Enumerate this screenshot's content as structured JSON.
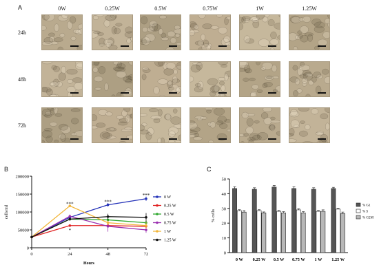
{
  "figure": {
    "panel_a": {
      "letter": "A",
      "columns": [
        "0W",
        "0.25W",
        "0.5W",
        "0.75W",
        "1W",
        "1.25W"
      ],
      "rows": [
        "24h",
        "48h",
        "72h"
      ]
    },
    "panel_b": {
      "letter": "B"
    },
    "panel_c": {
      "letter": "C"
    }
  },
  "chart_data": [
    {
      "type": "line",
      "panel": "B",
      "xlabel": "Hours",
      "ylabel": "cells/ml",
      "x": [
        0,
        24,
        48,
        72
      ],
      "ylim": [
        0,
        200000
      ],
      "yticks": [
        "0",
        "50000",
        "100000",
        "150000",
        "200000"
      ],
      "series": [
        {
          "name": "0 W",
          "color": "#2432b8",
          "values": [
            30000,
            85000,
            120000,
            137000
          ],
          "errors": [
            2000,
            4000,
            5000,
            6000
          ]
        },
        {
          "name": "0.25 W",
          "color": "#e02020",
          "values": [
            30000,
            62000,
            62000,
            60000
          ],
          "errors": [
            2000,
            3000,
            4000,
            5000
          ]
        },
        {
          "name": "0.5 W",
          "color": "#2ea82e",
          "values": [
            30000,
            80000,
            78000,
            70000
          ],
          "errors": [
            2000,
            4000,
            6000,
            6000
          ]
        },
        {
          "name": "0.75 W",
          "color": "#9a2eb0",
          "values": [
            30000,
            88000,
            60000,
            50000
          ],
          "errors": [
            2000,
            5000,
            15000,
            8000
          ]
        },
        {
          "name": "1 W",
          "color": "#f2b63a",
          "values": [
            30000,
            117000,
            70000,
            62000
          ],
          "errors": [
            2000,
            4000,
            6000,
            10000
          ]
        },
        {
          "name": "1.25 W",
          "color": "#111111",
          "values": [
            30000,
            80000,
            87000,
            85000
          ],
          "errors": [
            2000,
            4000,
            8000,
            12000
          ]
        }
      ],
      "annotations": [
        {
          "x": 24,
          "y": 122000,
          "text": "***"
        },
        {
          "x": 24,
          "y": 48000,
          "text": "*"
        },
        {
          "x": 48,
          "y": 128000,
          "text": "***"
        },
        {
          "x": 72,
          "y": 146000,
          "text": "***"
        }
      ]
    },
    {
      "type": "bar",
      "panel": "C",
      "ylabel": "% cells",
      "categories": [
        "0 W",
        "0.25 W",
        "0.5 W",
        "0.75 W",
        "1 W",
        "1.25 W"
      ],
      "ylim": [
        0,
        50
      ],
      "yticks": [
        "0",
        "10",
        "20",
        "30",
        "40",
        "50"
      ],
      "series": [
        {
          "name": "% G1",
          "color": "#555555",
          "values": [
            43.5,
            43,
            44.5,
            43.5,
            43,
            43.5
          ],
          "errors": [
            1.2,
            1.0,
            1.0,
            1.2,
            1.0,
            0.8
          ]
        },
        {
          "name": "% S",
          "color": "#ffffff",
          "values": [
            28.5,
            28.5,
            28,
            29,
            28,
            29.5
          ],
          "errors": [
            0.6,
            0.6,
            0.6,
            0.8,
            0.6,
            0.6
          ]
        },
        {
          "name": "% G2M",
          "color": "#b8b8b8",
          "values": [
            27.5,
            27,
            27,
            27,
            28,
            26.5
          ],
          "errors": [
            1.0,
            0.6,
            0.8,
            0.8,
            1.0,
            1.0
          ]
        }
      ]
    }
  ]
}
